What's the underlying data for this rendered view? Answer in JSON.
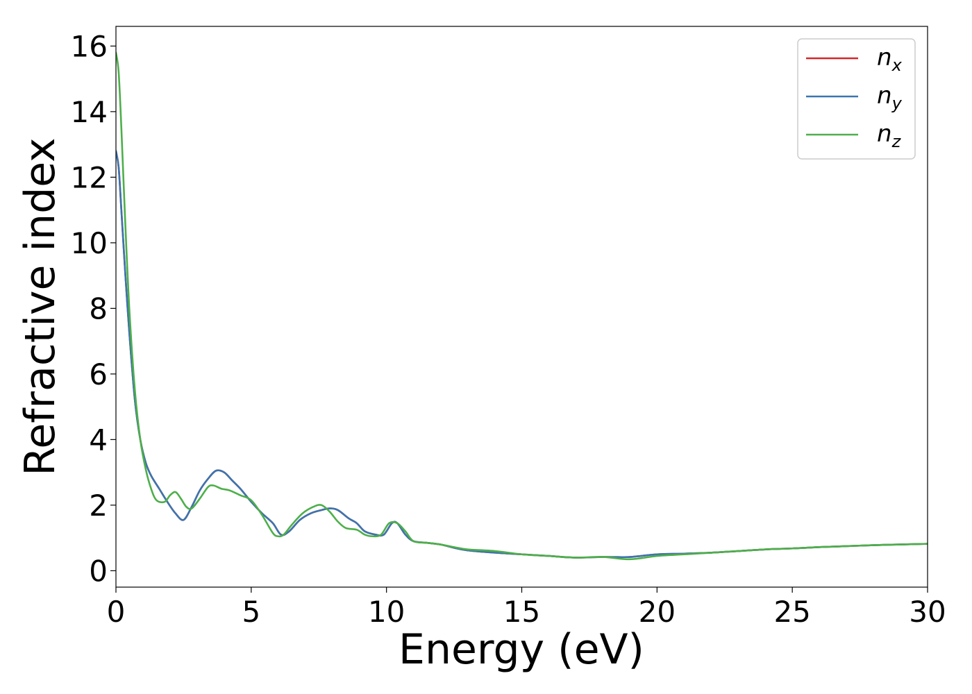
{
  "chart_data": {
    "type": "line",
    "title": "",
    "xlabel": "Energy (eV)",
    "ylabel": "Refractive index",
    "xlim": [
      0,
      30
    ],
    "ylim": [
      -0.5,
      16.6
    ],
    "xticks": [
      0,
      5,
      10,
      15,
      20,
      25,
      30
    ],
    "yticks": [
      0,
      2,
      4,
      6,
      8,
      10,
      12,
      14,
      16
    ],
    "grid": false,
    "legend_position": "top-right",
    "series": [
      {
        "name": "n",
        "subscript": "x",
        "color": "#d62728",
        "x": [
          0,
          0.1,
          0.2,
          0.35,
          0.5,
          0.7,
          0.9,
          1.1,
          1.3,
          1.6,
          1.9,
          2.2,
          2.5,
          2.8,
          3.1,
          3.4,
          3.7,
          4.0,
          4.3,
          4.6,
          5.0,
          5.4,
          5.8,
          6.1,
          6.4,
          6.8,
          7.2,
          7.6,
          7.9,
          8.2,
          8.6,
          8.9,
          9.2,
          9.6,
          9.9,
          10.2,
          10.4,
          10.7,
          11.0,
          11.5,
          12.0,
          12.5,
          13.0,
          14.0,
          15.0,
          16.0,
          17.0,
          18.0,
          19.0,
          20.0,
          21.0,
          22.0,
          23.0,
          24.0,
          25.0,
          26.0,
          27.0,
          28.0,
          29.0,
          30.0
        ],
        "y": [
          12.8,
          12.3,
          11.0,
          9.0,
          7.2,
          5.2,
          4.0,
          3.3,
          2.9,
          2.5,
          2.1,
          1.75,
          1.55,
          1.95,
          2.45,
          2.8,
          3.05,
          3.0,
          2.75,
          2.5,
          2.1,
          1.75,
          1.45,
          1.1,
          1.2,
          1.55,
          1.75,
          1.85,
          1.9,
          1.85,
          1.6,
          1.45,
          1.2,
          1.1,
          1.1,
          1.45,
          1.45,
          1.1,
          0.9,
          0.85,
          0.8,
          0.7,
          0.62,
          0.55,
          0.5,
          0.45,
          0.4,
          0.42,
          0.42,
          0.5,
          0.52,
          0.55,
          0.6,
          0.65,
          0.68,
          0.72,
          0.75,
          0.78,
          0.8,
          0.82
        ]
      },
      {
        "name": "n",
        "subscript": "y",
        "color": "#3b75af",
        "x": [
          0,
          0.1,
          0.2,
          0.35,
          0.5,
          0.7,
          0.9,
          1.1,
          1.3,
          1.6,
          1.9,
          2.2,
          2.5,
          2.8,
          3.1,
          3.4,
          3.7,
          4.0,
          4.3,
          4.6,
          5.0,
          5.4,
          5.8,
          6.1,
          6.4,
          6.8,
          7.2,
          7.6,
          7.9,
          8.2,
          8.6,
          8.9,
          9.2,
          9.6,
          9.9,
          10.2,
          10.4,
          10.7,
          11.0,
          11.5,
          12.0,
          12.5,
          13.0,
          14.0,
          15.0,
          16.0,
          17.0,
          18.0,
          19.0,
          20.0,
          21.0,
          22.0,
          23.0,
          24.0,
          25.0,
          26.0,
          27.0,
          28.0,
          29.0,
          30.0
        ],
        "y": [
          12.8,
          12.3,
          11.0,
          9.0,
          7.2,
          5.2,
          4.0,
          3.3,
          2.9,
          2.5,
          2.1,
          1.75,
          1.55,
          1.95,
          2.45,
          2.8,
          3.05,
          3.0,
          2.75,
          2.5,
          2.1,
          1.75,
          1.45,
          1.1,
          1.2,
          1.55,
          1.75,
          1.85,
          1.9,
          1.85,
          1.6,
          1.45,
          1.2,
          1.1,
          1.1,
          1.45,
          1.45,
          1.1,
          0.9,
          0.85,
          0.8,
          0.7,
          0.62,
          0.55,
          0.5,
          0.45,
          0.4,
          0.42,
          0.42,
          0.5,
          0.52,
          0.55,
          0.6,
          0.65,
          0.68,
          0.72,
          0.75,
          0.78,
          0.8,
          0.82
        ]
      },
      {
        "name": "n",
        "subscript": "z",
        "color": "#4daf4a",
        "x": [
          0,
          0.1,
          0.2,
          0.35,
          0.5,
          0.7,
          0.9,
          1.1,
          1.3,
          1.5,
          1.8,
          2.0,
          2.2,
          2.4,
          2.6,
          2.8,
          3.1,
          3.4,
          3.6,
          3.9,
          4.2,
          4.6,
          5.0,
          5.4,
          5.8,
          6.0,
          6.2,
          6.5,
          6.9,
          7.3,
          7.6,
          7.9,
          8.2,
          8.5,
          8.9,
          9.2,
          9.5,
          9.8,
          10.1,
          10.4,
          10.7,
          11.0,
          11.5,
          12.0,
          12.5,
          13.0,
          14.0,
          15.0,
          16.0,
          17.0,
          18.0,
          19.0,
          20.0,
          21.0,
          22.0,
          23.0,
          24.0,
          25.0,
          26.0,
          27.0,
          28.0,
          29.0,
          30.0
        ],
        "y": [
          15.8,
          15.2,
          13.5,
          10.5,
          7.9,
          5.5,
          4.0,
          3.1,
          2.5,
          2.15,
          2.1,
          2.3,
          2.4,
          2.2,
          1.95,
          1.9,
          2.2,
          2.55,
          2.6,
          2.5,
          2.45,
          2.3,
          2.15,
          1.7,
          1.15,
          1.05,
          1.1,
          1.4,
          1.75,
          1.95,
          2.0,
          1.8,
          1.5,
          1.3,
          1.25,
          1.1,
          1.05,
          1.1,
          1.45,
          1.45,
          1.2,
          0.9,
          0.85,
          0.8,
          0.72,
          0.65,
          0.6,
          0.5,
          0.45,
          0.4,
          0.42,
          0.35,
          0.45,
          0.5,
          0.55,
          0.6,
          0.65,
          0.68,
          0.72,
          0.75,
          0.78,
          0.8,
          0.82
        ]
      }
    ]
  }
}
